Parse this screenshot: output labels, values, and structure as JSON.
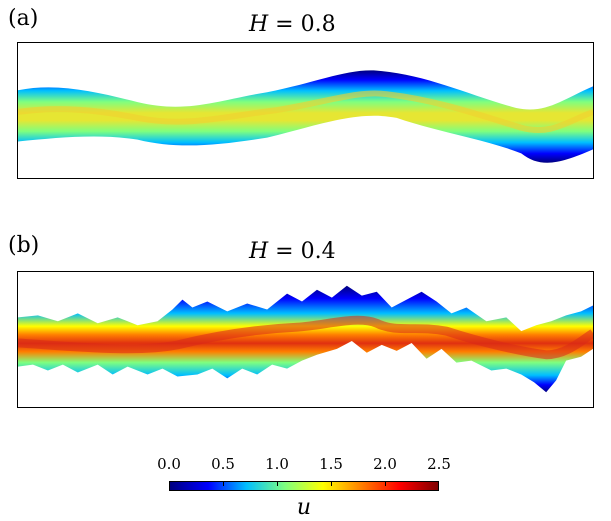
{
  "panels": [
    {
      "label": "(a)",
      "title_var": "H",
      "title_eq": " = 0.8"
    },
    {
      "label": "(b)",
      "title_var": "H",
      "title_eq": " = 0.4"
    }
  ],
  "colorbar": {
    "ticks": [
      "0.0",
      "0.5",
      "1.0",
      "1.5",
      "2.0",
      "2.5"
    ],
    "label": "u",
    "colormap": [
      "#00007f",
      "#0000ff",
      "#00bfff",
      "#7fff7f",
      "#ffff00",
      "#ff7f00",
      "#ff0000",
      "#7f0000"
    ]
  }
}
